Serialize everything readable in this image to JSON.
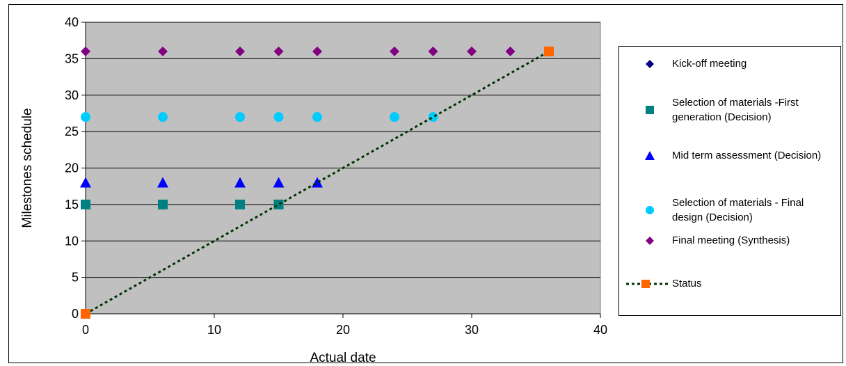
{
  "chart_data": {
    "type": "scatter",
    "xlabel": "Actual date",
    "ylabel": "Milestones schedule",
    "xlim": [
      0,
      40
    ],
    "ylim": [
      0,
      40
    ],
    "x_ticks": [
      "0",
      "10",
      "20",
      "30",
      "40"
    ],
    "y_ticks": [
      "0",
      "5",
      "10",
      "15",
      "20",
      "25",
      "30",
      "35",
      "40"
    ],
    "grid": "horizontal",
    "plot_background": "#c0c0c0",
    "legend_position": "right",
    "series": [
      {
        "name": "Kick-off meeting",
        "marker": "diamond",
        "color": "#000080",
        "points": []
      },
      {
        "name": "Selection of materials -First generation (Decision)",
        "marker": "square",
        "color": "#008080",
        "points": [
          [
            0,
            15
          ],
          [
            6,
            15
          ],
          [
            12,
            15
          ],
          [
            15,
            15
          ]
        ]
      },
      {
        "name": "Mid term assessment (Decision)",
        "marker": "triangle",
        "color": "#0000ff",
        "points": [
          [
            0,
            18
          ],
          [
            6,
            18
          ],
          [
            12,
            18
          ],
          [
            15,
            18
          ],
          [
            18,
            18
          ]
        ]
      },
      {
        "name": "Selection of materials - Final design (Decision)",
        "marker": "circle",
        "color": "#00ccff",
        "points": [
          [
            0,
            27
          ],
          [
            6,
            27
          ],
          [
            12,
            27
          ],
          [
            15,
            27
          ],
          [
            18,
            27
          ],
          [
            24,
            27
          ],
          [
            27,
            27
          ]
        ]
      },
      {
        "name": "Final meeting (Synthesis)",
        "marker": "diamond",
        "color": "#800080",
        "points": [
          [
            0,
            36
          ],
          [
            6,
            36
          ],
          [
            12,
            36
          ],
          [
            15,
            36
          ],
          [
            18,
            36
          ],
          [
            24,
            36
          ],
          [
            27,
            36
          ],
          [
            30,
            36
          ],
          [
            33,
            36
          ]
        ]
      },
      {
        "name": "Status",
        "marker": "square",
        "color": "#ff6600",
        "line_color": "#003300",
        "line_style": "dotted",
        "points": [
          [
            0,
            0
          ],
          [
            6,
            6
          ],
          [
            12,
            12
          ],
          [
            15,
            15
          ],
          [
            18,
            18
          ],
          [
            24,
            24
          ],
          [
            27,
            27
          ],
          [
            30,
            30
          ],
          [
            33,
            33
          ],
          [
            36,
            36
          ]
        ],
        "marked_points": [
          [
            0,
            0
          ],
          [
            36,
            36
          ]
        ]
      }
    ]
  }
}
